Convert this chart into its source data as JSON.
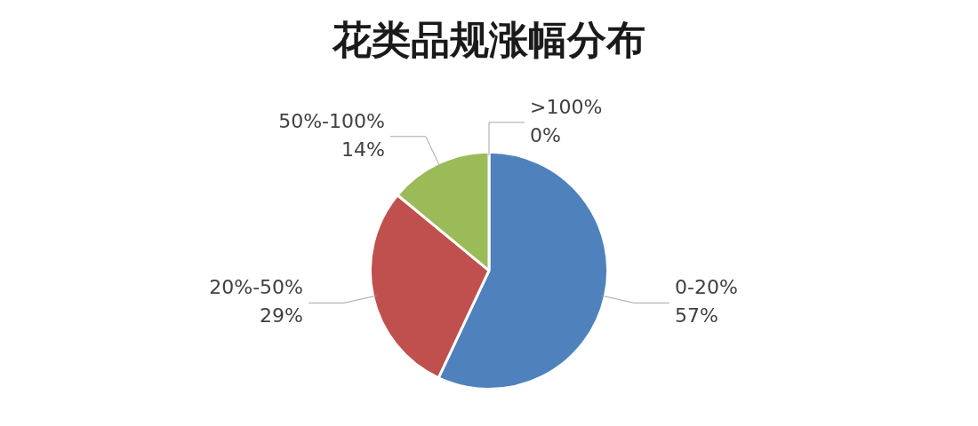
{
  "chart_data": {
    "type": "pie",
    "title": "花类品规涨幅分布",
    "categories": [
      "0-20%",
      "20%-50%",
      "50%-100%",
      ">100%"
    ],
    "values": [
      57,
      29,
      14,
      0
    ],
    "colors": [
      "#4f81bd",
      "#c0504d",
      "#9bbb59",
      "#8064a2"
    ],
    "value_labels": [
      "57%",
      "29%",
      "14%",
      "0%"
    ],
    "legend": false
  }
}
